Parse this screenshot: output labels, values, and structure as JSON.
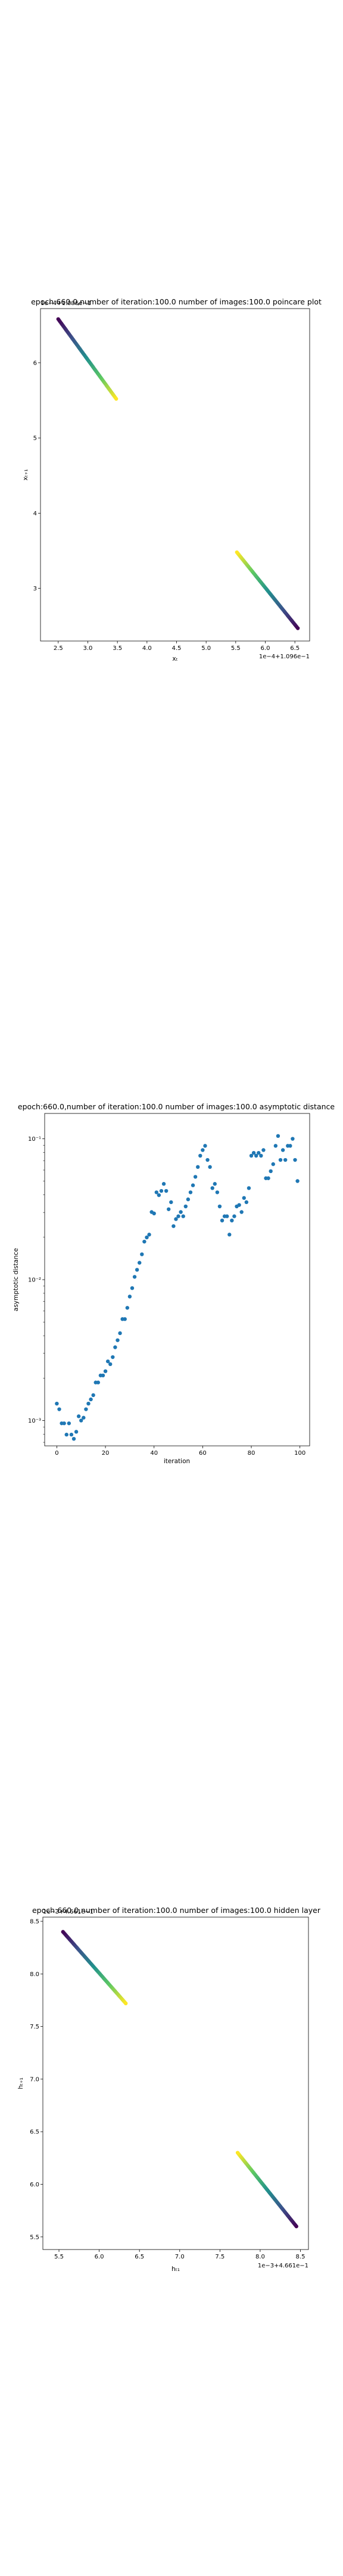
{
  "chart_data": [
    {
      "type": "scatter",
      "title": "epoch:660.0,number of iteration:100.0  number of images:100.0 poincare plot",
      "xlabel": "xₜ",
      "ylabel": "xₜ₊₁",
      "x_offset_text": "1e−4+1.096e−1",
      "y_offset_text": "1e−4+1.096e−1",
      "xlim": [
        2.2,
        6.75
      ],
      "ylim": [
        2.3,
        6.72
      ],
      "xticks": [
        2.5,
        3.0,
        3.5,
        4.0,
        4.5,
        5.0,
        5.5,
        6.0,
        6.5
      ],
      "xtick_labels": [
        "2.5",
        "3.0",
        "3.5",
        "4.0",
        "4.5",
        "5.0",
        "5.5",
        "6.0",
        "6.5"
      ],
      "yticks": [
        3,
        4,
        5,
        6
      ],
      "ytick_labels": [
        "3",
        "4",
        "5",
        "6"
      ],
      "colormap": [
        "#440154",
        "#3b528b",
        "#21918c",
        "#5ec962",
        "#fde725"
      ],
      "segments": [
        {
          "x_start": 2.5,
          "y_start": 6.58,
          "x_end": 3.48,
          "y_end": 5.52
        },
        {
          "x_start": 6.55,
          "y_start": 2.47,
          "x_end": 5.52,
          "y_end": 3.48
        }
      ]
    },
    {
      "type": "scatter",
      "title": "epoch:660.0,number of iteration:100.0  number of images:100.0 asymptotic distance",
      "xlabel": "iteration",
      "ylabel": "asymptotic distance",
      "xlim": [
        -5,
        104
      ],
      "ylim_log10": [
        -3.18,
        -0.82
      ],
      "yscale": "log",
      "xticks": [
        0,
        20,
        40,
        60,
        80,
        100
      ],
      "xtick_labels": [
        "0",
        "20",
        "40",
        "60",
        "80",
        "100"
      ],
      "yticks_log10": [
        -3,
        -2,
        -1
      ],
      "ytick_labels": [
        "10⁻³",
        "10⁻²",
        "10⁻¹"
      ],
      "point_color": "#1f77b4",
      "x": [
        0,
        1,
        2,
        3,
        4,
        5,
        6,
        7,
        8,
        9,
        10,
        11,
        12,
        13,
        14,
        15,
        16,
        17,
        18,
        19,
        20,
        21,
        22,
        23,
        24,
        25,
        26,
        27,
        28,
        29,
        30,
        31,
        32,
        33,
        34,
        35,
        36,
        37,
        38,
        39,
        40,
        41,
        42,
        43,
        44,
        45,
        46,
        47,
        48,
        49,
        50,
        51,
        52,
        53,
        54,
        55,
        56,
        57,
        58,
        59,
        60,
        61,
        62,
        63,
        64,
        65,
        66,
        67,
        68,
        69,
        70,
        71,
        72,
        73,
        74,
        75,
        76,
        77,
        78,
        79,
        80,
        81,
        82,
        83,
        84,
        85,
        86,
        87,
        88,
        89,
        90,
        91,
        92,
        93,
        94,
        95,
        96,
        97,
        98,
        99
      ],
      "y_log10": [
        -2.88,
        -2.92,
        -3.02,
        -3.02,
        -3.1,
        -3.02,
        -3.1,
        -3.13,
        -3.08,
        -2.97,
        -3.0,
        -2.98,
        -2.92,
        -2.88,
        -2.85,
        -2.82,
        -2.73,
        -2.73,
        -2.68,
        -2.68,
        -2.65,
        -2.58,
        -2.6,
        -2.55,
        -2.48,
        -2.43,
        -2.38,
        -2.28,
        -2.28,
        -2.2,
        -2.12,
        -2.06,
        -1.98,
        -1.93,
        -1.88,
        -1.82,
        -1.73,
        -1.7,
        -1.68,
        -1.52,
        -1.53,
        -1.38,
        -1.4,
        -1.37,
        -1.32,
        -1.37,
        -1.5,
        -1.45,
        -1.62,
        -1.57,
        -1.55,
        -1.52,
        -1.55,
        -1.48,
        -1.43,
        -1.38,
        -1.33,
        -1.27,
        -1.2,
        -1.12,
        -1.08,
        -1.05,
        -1.15,
        -1.2,
        -1.35,
        -1.32,
        -1.38,
        -1.48,
        -1.58,
        -1.55,
        -1.55,
        -1.68,
        -1.58,
        -1.55,
        -1.48,
        -1.47,
        -1.52,
        -1.42,
        -1.45,
        -1.35,
        -1.12,
        -1.1,
        -1.12,
        -1.1,
        -1.12,
        -1.08,
        -1.28,
        -1.28,
        -1.23,
        -1.18,
        -1.05,
        -0.98,
        -1.15,
        -1.08,
        -1.15,
        -1.05,
        -1.05,
        -1.0,
        -1.15,
        -1.3
      ]
    },
    {
      "type": "scatter",
      "title": "epoch:660.0,number of iteration:100.0  number of images:100.0 hidden layer",
      "xlabel": "hₜ₁",
      "ylabel": "hₜ₊₁",
      "x_offset_text": "1e−3+4.661e−1",
      "y_offset_text": "1e−3+4.661e−1",
      "xlim": [
        5.3,
        8.6
      ],
      "ylim": [
        5.38,
        8.54
      ],
      "xticks": [
        5.5,
        6.0,
        6.5,
        7.0,
        7.5,
        8.0,
        8.5
      ],
      "xtick_labels": [
        "5.5",
        "6.0",
        "6.5",
        "7.0",
        "7.5",
        "8.0",
        "8.5"
      ],
      "yticks": [
        5.5,
        6.0,
        6.5,
        7.0,
        7.5,
        8.0,
        8.5
      ],
      "ytick_labels": [
        "5.5",
        "6.0",
        "6.5",
        "7.0",
        "7.5",
        "8.0",
        "8.5"
      ],
      "colormap": [
        "#440154",
        "#3b528b",
        "#21918c",
        "#5ec962",
        "#fde725"
      ],
      "segments": [
        {
          "x_start": 5.55,
          "y_start": 8.4,
          "x_end": 6.33,
          "y_end": 7.72
        },
        {
          "x_start": 8.45,
          "y_start": 5.6,
          "x_end": 7.72,
          "y_end": 6.3
        }
      ]
    }
  ]
}
